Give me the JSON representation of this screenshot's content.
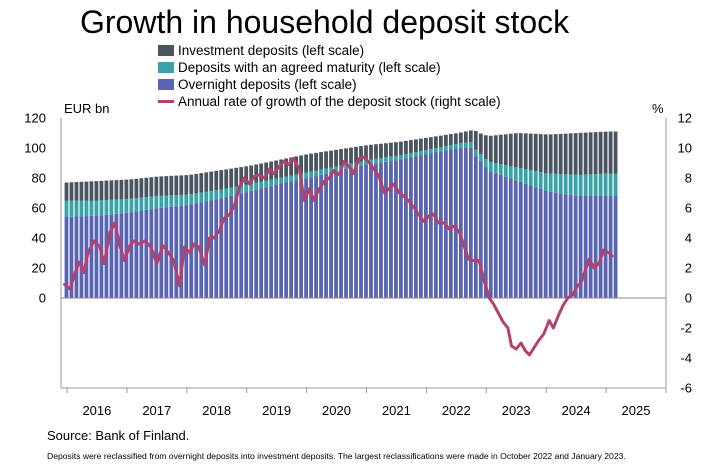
{
  "chart_data": {
    "type": "bar",
    "title": "Growth in household deposit stock",
    "left_unit": "EUR bn",
    "right_unit": "%",
    "left_ticks": [
      "120",
      "100",
      "80",
      "60",
      "40",
      "20",
      "0"
    ],
    "right_ticks": [
      "12",
      "10",
      "8",
      "6",
      "4",
      "2",
      "0",
      "-2",
      "-4",
      "-6"
    ],
    "x_ticks": [
      "2016",
      "2017",
      "2018",
      "2019",
      "2020",
      "2021",
      "2022",
      "2023",
      "2024",
      "2025"
    ],
    "ylim_left": [
      0,
      120
    ],
    "ylim_right": [
      -6,
      12
    ],
    "x_range_years": [
      2015.9,
      2026.0
    ],
    "series": [
      {
        "name": "Investment deposits (left scale)",
        "color": "#4a5561",
        "kind": "stacked-bar",
        "knots": [
          [
            2015.96,
            12
          ],
          [
            2016.5,
            13
          ],
          [
            2017.0,
            13
          ],
          [
            2017.5,
            13
          ],
          [
            2018.0,
            13
          ],
          [
            2018.5,
            13
          ],
          [
            2019.0,
            12
          ],
          [
            2019.5,
            12
          ],
          [
            2020.0,
            12
          ],
          [
            2020.5,
            11
          ],
          [
            2021.0,
            10
          ],
          [
            2021.5,
            9
          ],
          [
            2022.0,
            8
          ],
          [
            2022.5,
            7
          ],
          [
            2022.75,
            8
          ],
          [
            2022.76,
            12
          ],
          [
            2022.9,
            14
          ],
          [
            2023.0,
            17
          ],
          [
            2023.5,
            23
          ],
          [
            2024.0,
            26
          ],
          [
            2024.5,
            28
          ],
          [
            2025.0,
            28
          ],
          [
            2025.17,
            28
          ]
        ]
      },
      {
        "name": "Deposits with an agreed maturity (left scale)",
        "color": "#3aa3a8",
        "kind": "stacked-bar",
        "knots": [
          [
            2015.96,
            11
          ],
          [
            2016.5,
            10
          ],
          [
            2017.0,
            9
          ],
          [
            2017.5,
            8
          ],
          [
            2018.0,
            7
          ],
          [
            2018.5,
            6
          ],
          [
            2019.0,
            5
          ],
          [
            2019.5,
            4
          ],
          [
            2020.0,
            4
          ],
          [
            2020.5,
            3
          ],
          [
            2021.0,
            3
          ],
          [
            2021.5,
            3
          ],
          [
            2022.0,
            3
          ],
          [
            2022.5,
            3
          ],
          [
            2022.75,
            4
          ],
          [
            2023.0,
            6
          ],
          [
            2023.5,
            9
          ],
          [
            2024.0,
            12
          ],
          [
            2024.5,
            14
          ],
          [
            2025.0,
            15
          ],
          [
            2025.17,
            15
          ]
        ]
      },
      {
        "name": "Overnight deposits (left scale)",
        "color": "#5964b3",
        "kind": "stacked-bar",
        "knots": [
          [
            2015.96,
            54
          ],
          [
            2016.5,
            55
          ],
          [
            2017.0,
            57
          ],
          [
            2017.5,
            60
          ],
          [
            2018.0,
            62
          ],
          [
            2018.5,
            66
          ],
          [
            2019.0,
            71
          ],
          [
            2019.5,
            76
          ],
          [
            2020.0,
            80
          ],
          [
            2020.5,
            85
          ],
          [
            2021.0,
            89
          ],
          [
            2021.5,
            92
          ],
          [
            2022.0,
            96
          ],
          [
            2022.5,
            100
          ],
          [
            2022.75,
            100
          ],
          [
            2022.76,
            96
          ],
          [
            2022.9,
            90
          ],
          [
            2023.0,
            85
          ],
          [
            2023.5,
            78
          ],
          [
            2024.0,
            71
          ],
          [
            2024.5,
            68
          ],
          [
            2025.0,
            68
          ],
          [
            2025.17,
            68
          ]
        ]
      },
      {
        "name": "Annual rate of growth of the deposit stock (right scale)",
        "color": "#b3406e",
        "kind": "line",
        "points": [
          [
            2015.96,
            0.9
          ],
          [
            2016.05,
            0.6
          ],
          [
            2016.12,
            1.5
          ],
          [
            2016.2,
            2.4
          ],
          [
            2016.28,
            1.7
          ],
          [
            2016.35,
            3.0
          ],
          [
            2016.45,
            3.8
          ],
          [
            2016.55,
            3.4
          ],
          [
            2016.62,
            2.3
          ],
          [
            2016.72,
            4.4
          ],
          [
            2016.8,
            5.0
          ],
          [
            2016.88,
            3.5
          ],
          [
            2016.96,
            2.5
          ],
          [
            2017.05,
            3.5
          ],
          [
            2017.12,
            3.8
          ],
          [
            2017.2,
            3.6
          ],
          [
            2017.3,
            3.8
          ],
          [
            2017.4,
            3.4
          ],
          [
            2017.5,
            2.3
          ],
          [
            2017.6,
            3.5
          ],
          [
            2017.7,
            3.0
          ],
          [
            2017.78,
            2.5
          ],
          [
            2017.88,
            0.8
          ],
          [
            2017.96,
            3.4
          ],
          [
            2018.05,
            3.0
          ],
          [
            2018.12,
            3.6
          ],
          [
            2018.2,
            3.4
          ],
          [
            2018.3,
            2.2
          ],
          [
            2018.38,
            4.0
          ],
          [
            2018.45,
            4.0
          ],
          [
            2018.55,
            4.5
          ],
          [
            2018.62,
            5.3
          ],
          [
            2018.72,
            5.6
          ],
          [
            2018.8,
            6.2
          ],
          [
            2018.88,
            7.4
          ],
          [
            2018.96,
            8.0
          ],
          [
            2019.05,
            7.6
          ],
          [
            2019.12,
            8.1
          ],
          [
            2019.2,
            8.2
          ],
          [
            2019.3,
            8.0
          ],
          [
            2019.38,
            8.6
          ],
          [
            2019.45,
            8.3
          ],
          [
            2019.55,
            8.8
          ],
          [
            2019.62,
            9.1
          ],
          [
            2019.7,
            8.9
          ],
          [
            2019.78,
            9.3
          ],
          [
            2019.88,
            8.6
          ],
          [
            2019.96,
            6.5
          ],
          [
            2020.05,
            7.3
          ],
          [
            2020.12,
            6.5
          ],
          [
            2020.2,
            7.2
          ],
          [
            2020.3,
            7.8
          ],
          [
            2020.38,
            8.0
          ],
          [
            2020.45,
            8.5
          ],
          [
            2020.55,
            8.2
          ],
          [
            2020.62,
            9.1
          ],
          [
            2020.7,
            8.8
          ],
          [
            2020.78,
            8.3
          ],
          [
            2020.88,
            9.3
          ],
          [
            2020.96,
            9.4
          ],
          [
            2021.05,
            9.0
          ],
          [
            2021.12,
            8.6
          ],
          [
            2021.2,
            8.2
          ],
          [
            2021.3,
            7.0
          ],
          [
            2021.38,
            7.3
          ],
          [
            2021.45,
            7.6
          ],
          [
            2021.55,
            7.0
          ],
          [
            2021.62,
            6.8
          ],
          [
            2021.7,
            6.5
          ],
          [
            2021.8,
            6.0
          ],
          [
            2021.88,
            5.5
          ],
          [
            2021.96,
            5.1
          ],
          [
            2022.05,
            5.5
          ],
          [
            2022.12,
            5.6
          ],
          [
            2022.2,
            5.0
          ],
          [
            2022.3,
            5.0
          ],
          [
            2022.38,
            4.6
          ],
          [
            2022.46,
            4.8
          ],
          [
            2022.55,
            4.4
          ],
          [
            2022.62,
            3.6
          ],
          [
            2022.7,
            2.6
          ],
          [
            2022.78,
            2.5
          ],
          [
            2022.88,
            2.5
          ],
          [
            2022.96,
            1.2
          ],
          [
            2023.05,
            0.0
          ],
          [
            2023.12,
            -0.4
          ],
          [
            2023.2,
            -1.0
          ],
          [
            2023.28,
            -1.6
          ],
          [
            2023.36,
            -2.0
          ],
          [
            2023.42,
            -3.2
          ],
          [
            2023.5,
            -3.4
          ],
          [
            2023.58,
            -3.0
          ],
          [
            2023.65,
            -3.5
          ],
          [
            2023.72,
            -3.8
          ],
          [
            2023.8,
            -3.3
          ],
          [
            2023.88,
            -2.8
          ],
          [
            2023.96,
            -2.4
          ],
          [
            2024.05,
            -1.5
          ],
          [
            2024.12,
            -2.0
          ],
          [
            2024.2,
            -1.2
          ],
          [
            2024.28,
            -0.5
          ],
          [
            2024.36,
            0.0
          ],
          [
            2024.44,
            0.2
          ],
          [
            2024.52,
            0.8
          ],
          [
            2024.58,
            1.0
          ],
          [
            2024.65,
            1.8
          ],
          [
            2024.72,
            2.6
          ],
          [
            2024.8,
            2.0
          ],
          [
            2024.88,
            2.3
          ],
          [
            2024.96,
            3.2
          ],
          [
            2025.05,
            3.0
          ],
          [
            2025.1,
            2.8
          ]
        ]
      }
    ],
    "grid": false,
    "legend_position": "top-left"
  },
  "source_text": "Source: Bank of Finland.",
  "footnote_text": "Deposits were reclassified from overnight deposits into investment deposits. The largest reclassifications were made in October 2022 and January 2023."
}
